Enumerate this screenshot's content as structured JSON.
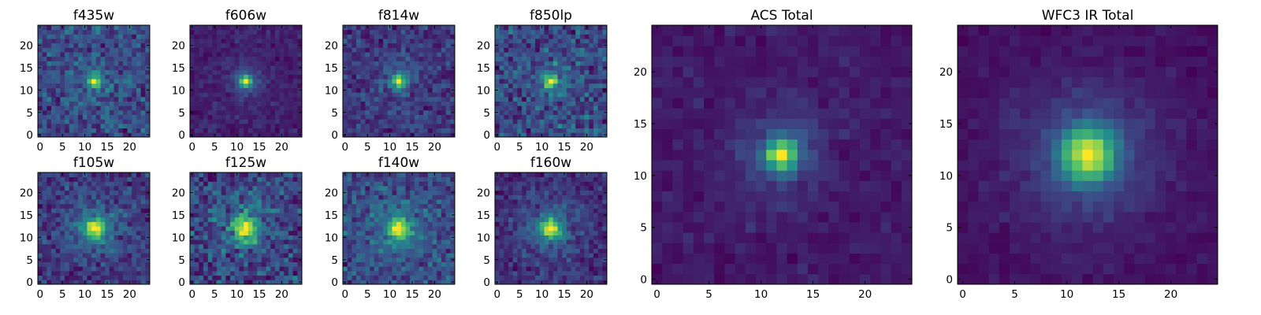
{
  "figure": {
    "colormap": "viridis",
    "colormap_stops": [
      "#440154",
      "#3b528b",
      "#21918c",
      "#5ec962",
      "#fde725"
    ]
  },
  "chart_data": [
    {
      "type": "heatmap",
      "title": "f435w",
      "grid_size": 25,
      "peak": [
        12,
        12
      ],
      "sigma": 0.8,
      "noise_level": 0.42,
      "xlim": [
        0,
        24
      ],
      "ylim": [
        0,
        24
      ],
      "xticks": [
        0,
        5,
        10,
        15,
        20
      ],
      "yticks": [
        0,
        5,
        10,
        15,
        20
      ],
      "grid": false
    },
    {
      "type": "heatmap",
      "title": "f606w",
      "grid_size": 25,
      "peak": [
        12,
        12
      ],
      "sigma": 0.9,
      "noise_level": 0.18,
      "xlim": [
        0,
        24
      ],
      "ylim": [
        0,
        24
      ],
      "xticks": [
        0,
        5,
        10,
        15,
        20
      ],
      "yticks": [
        0,
        5,
        10,
        15,
        20
      ],
      "grid": false
    },
    {
      "type": "heatmap",
      "title": "f814w",
      "grid_size": 25,
      "peak": [
        12,
        12
      ],
      "sigma": 1.0,
      "noise_level": 0.34,
      "xlim": [
        0,
        24
      ],
      "ylim": [
        0,
        24
      ],
      "xticks": [
        0,
        5,
        10,
        15,
        20
      ],
      "yticks": [
        0,
        5,
        10,
        15,
        20
      ],
      "grid": false
    },
    {
      "type": "heatmap",
      "title": "f850lp",
      "grid_size": 25,
      "peak": [
        12,
        12
      ],
      "sigma": 1.0,
      "noise_level": 0.52,
      "xlim": [
        0,
        24
      ],
      "ylim": [
        0,
        24
      ],
      "xticks": [
        0,
        5,
        10,
        15,
        20
      ],
      "yticks": [
        0,
        5,
        10,
        15,
        20
      ],
      "grid": false
    },
    {
      "type": "heatmap",
      "title": "f105w",
      "grid_size": 25,
      "peak": [
        12,
        12
      ],
      "sigma": 1.6,
      "noise_level": 0.36,
      "xlim": [
        0,
        24
      ],
      "ylim": [
        0,
        24
      ],
      "xticks": [
        0,
        5,
        10,
        15,
        20
      ],
      "yticks": [
        0,
        5,
        10,
        15,
        20
      ],
      "grid": false
    },
    {
      "type": "heatmap",
      "title": "f125w",
      "grid_size": 25,
      "peak": [
        12,
        12
      ],
      "sigma": 1.7,
      "noise_level": 0.5,
      "xlim": [
        0,
        24
      ],
      "ylim": [
        0,
        24
      ],
      "xticks": [
        0,
        5,
        10,
        15,
        20
      ],
      "yticks": [
        0,
        5,
        10,
        15,
        20
      ],
      "grid": false
    },
    {
      "type": "heatmap",
      "title": "f140w",
      "grid_size": 25,
      "peak": [
        12,
        12
      ],
      "sigma": 1.5,
      "noise_level": 0.42,
      "xlim": [
        0,
        24
      ],
      "ylim": [
        0,
        24
      ],
      "xticks": [
        0,
        5,
        10,
        15,
        20
      ],
      "yticks": [
        0,
        5,
        10,
        15,
        20
      ],
      "grid": false
    },
    {
      "type": "heatmap",
      "title": "f160w",
      "grid_size": 25,
      "peak": [
        12,
        12
      ],
      "sigma": 1.6,
      "noise_level": 0.3,
      "xlim": [
        0,
        24
      ],
      "ylim": [
        0,
        24
      ],
      "xticks": [
        0,
        5,
        10,
        15,
        20
      ],
      "yticks": [
        0,
        5,
        10,
        15,
        20
      ],
      "grid": false
    },
    {
      "type": "heatmap",
      "title": "ACS Total",
      "grid_size": 25,
      "peak": [
        12,
        12
      ],
      "sigma": 1.0,
      "noise_level": 0.14,
      "xlim": [
        0,
        24
      ],
      "ylim": [
        0,
        24
      ],
      "xticks": [
        0,
        5,
        10,
        15,
        20
      ],
      "yticks": [
        0,
        5,
        10,
        15,
        20
      ],
      "grid": false
    },
    {
      "type": "heatmap",
      "title": "WFC3 IR Total",
      "grid_size": 25,
      "peak": [
        12,
        12
      ],
      "sigma": 1.8,
      "noise_level": 0.1,
      "xlim": [
        0,
        24
      ],
      "ylim": [
        0,
        24
      ],
      "xticks": [
        0,
        5,
        10,
        15,
        20
      ],
      "yticks": [
        0,
        5,
        10,
        15,
        20
      ],
      "grid": false
    }
  ]
}
